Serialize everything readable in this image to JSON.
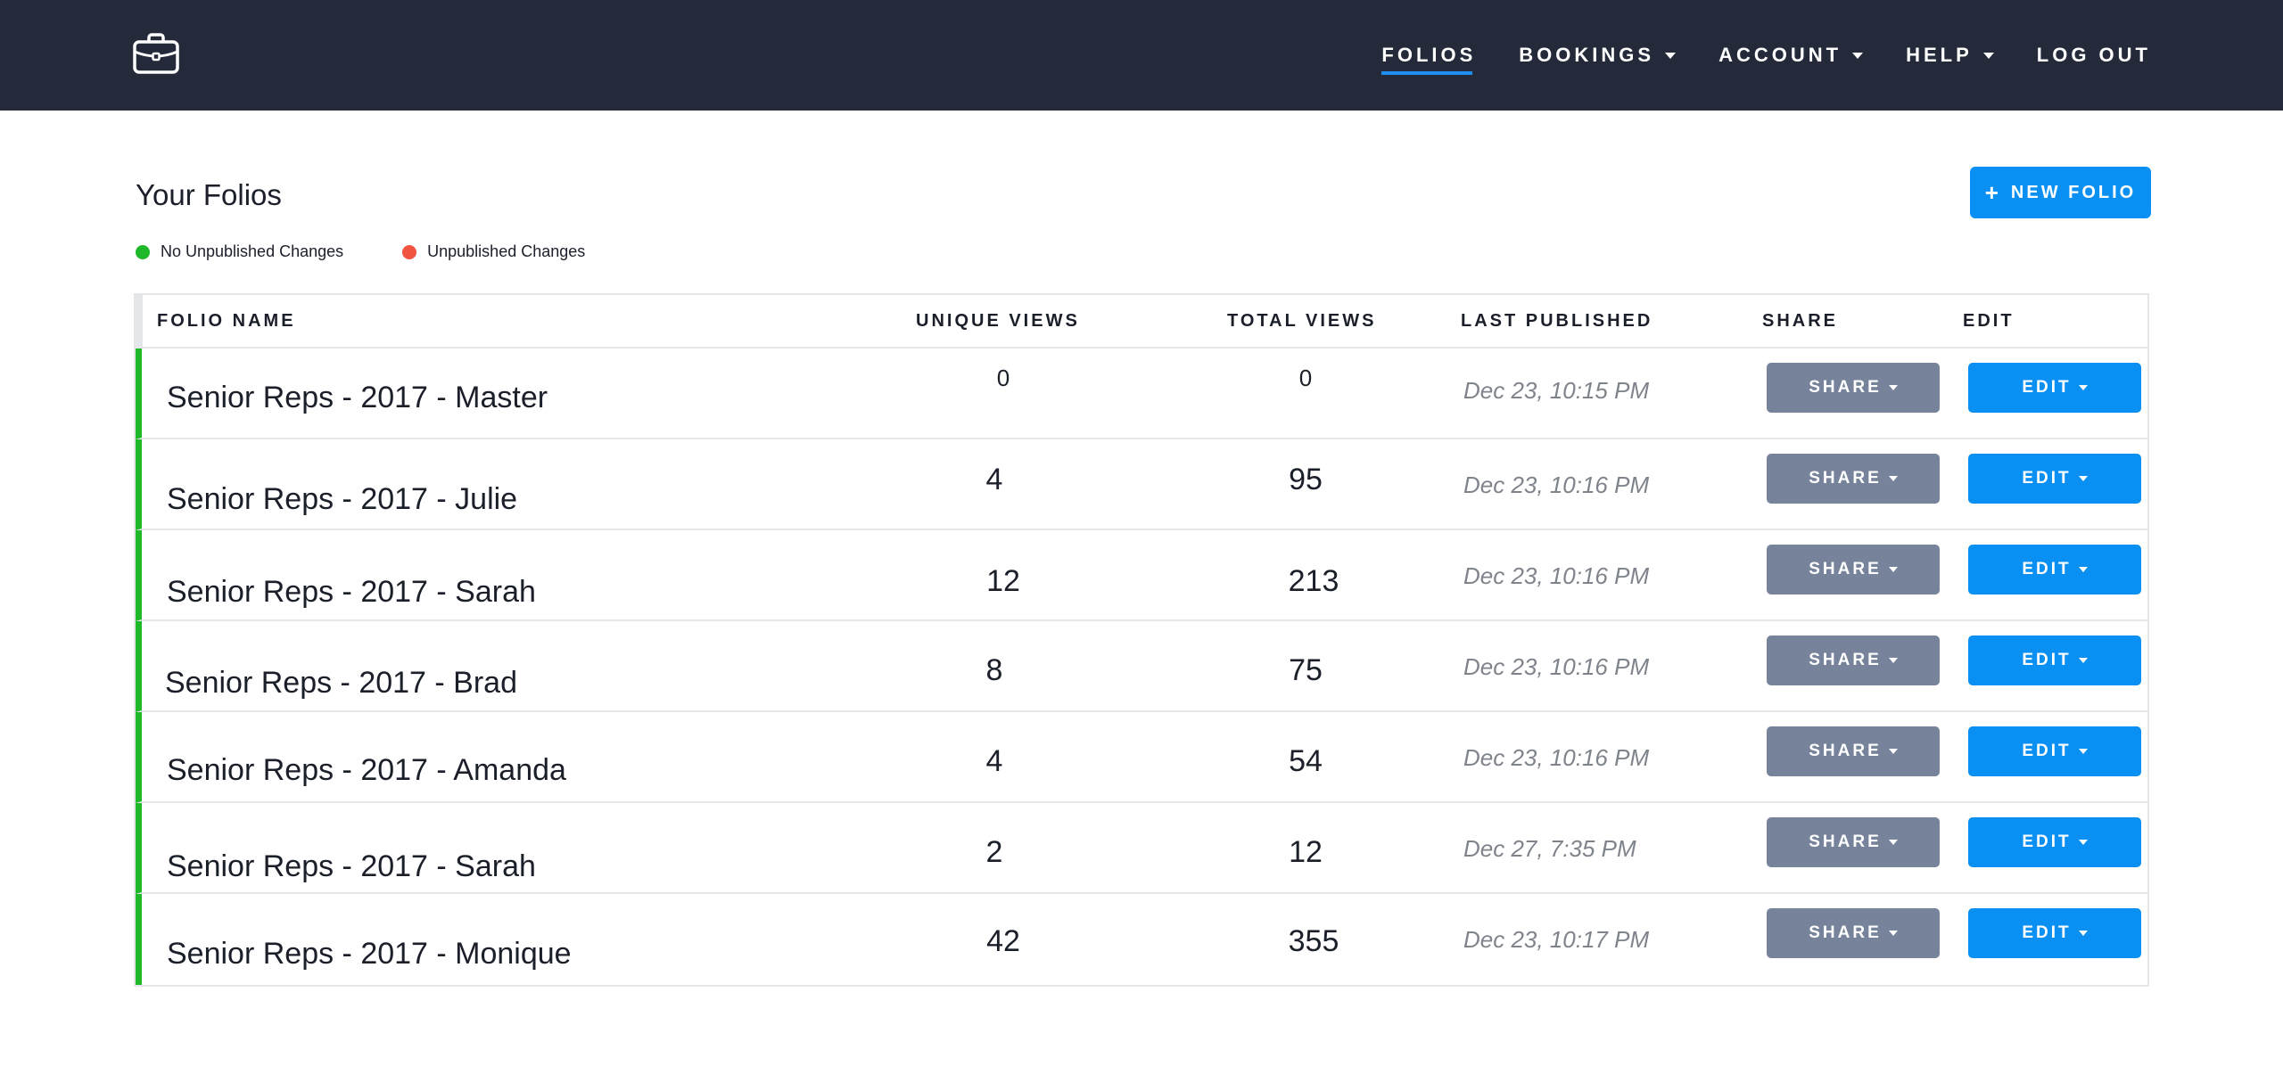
{
  "nav": {
    "items": [
      {
        "label": "FOLIOS",
        "dropdown": false,
        "active": true
      },
      {
        "label": "BOOKINGS",
        "dropdown": true,
        "active": false
      },
      {
        "label": "ACCOUNT",
        "dropdown": true,
        "active": false
      },
      {
        "label": "HELP",
        "dropdown": true,
        "active": false
      },
      {
        "label": "LOG OUT",
        "dropdown": false,
        "active": false
      }
    ]
  },
  "page": {
    "title": "Your Folios",
    "new_button_label": "NEW FOLIO"
  },
  "legend": {
    "published": {
      "label": "No Unpublished Changes",
      "color": "#1fb82b"
    },
    "unpublished": {
      "label": "Unpublished Changes",
      "color": "#f05340"
    }
  },
  "table": {
    "headers": {
      "name": "FOLIO NAME",
      "unique": "UNIQUE VIEWS",
      "total": "TOTAL VIEWS",
      "published": "LAST PUBLISHED",
      "share": "SHARE",
      "edit": "EDIT"
    },
    "rows": [
      {
        "name": "Senior Reps - 2017 - Master",
        "unique": "0",
        "total": "0",
        "published": "Dec 23, 10:15 PM",
        "share_label": "SHARE",
        "edit_label": "EDIT"
      },
      {
        "name": "Senior Reps - 2017 - Julie",
        "unique": "4",
        "total": "95",
        "published": "Dec 23, 10:16 PM",
        "share_label": "SHARE",
        "edit_label": "EDIT"
      },
      {
        "name": "Senior Reps - 2017 - Sarah",
        "unique": "12",
        "total": "213",
        "published": "Dec 23, 10:16 PM",
        "share_label": "SHARE",
        "edit_label": "EDIT"
      },
      {
        "name": "Senior Reps - 2017 - Brad",
        "unique": "8",
        "total": "75",
        "published": "Dec 23, 10:16 PM",
        "share_label": "SHARE",
        "edit_label": "EDIT"
      },
      {
        "name": "Senior Reps - 2017 - Amanda",
        "unique": "4",
        "total": "54",
        "published": "Dec 23, 10:16 PM",
        "share_label": "SHARE",
        "edit_label": "EDIT"
      },
      {
        "name": "Senior Reps - 2017 - Sarah",
        "unique": "2",
        "total": "12",
        "published": "Dec 27, 7:35 PM",
        "share_label": "SHARE",
        "edit_label": "EDIT"
      },
      {
        "name": "Senior Reps - 2017 - Monique",
        "unique": "42",
        "total": "355",
        "published": "Dec 23, 10:17 PM",
        "share_label": "SHARE",
        "edit_label": "EDIT"
      }
    ]
  },
  "icons": {
    "logo": "briefcase-icon",
    "plus": "plus-icon",
    "caret": "caret-down-icon"
  }
}
